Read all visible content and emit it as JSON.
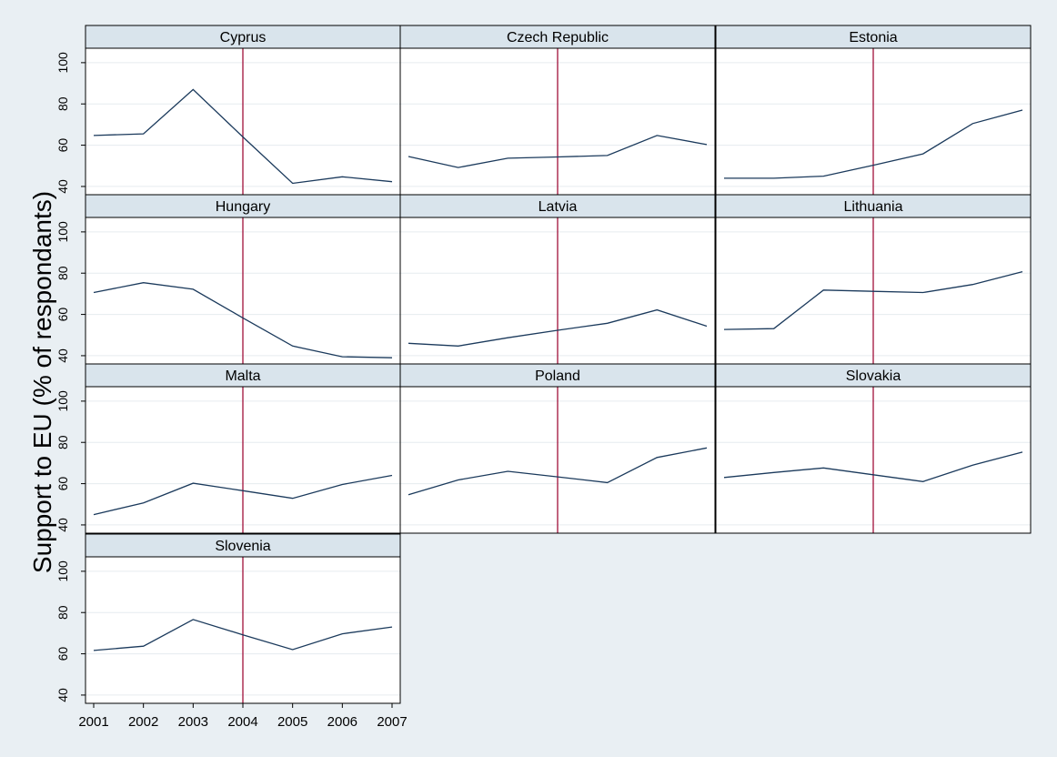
{
  "colors": {
    "page_background": "#e9eff3",
    "plot_background": "#ffffff",
    "strip_background": "#d9e4ec",
    "line": "#1b3a5c",
    "reference_line": "#a0103a",
    "gridline": "#e6ecef",
    "frame": "#000000"
  },
  "chart_data": {
    "type": "line",
    "layout": "small-multiples",
    "ylabel": "Support to EU (% of respondants)",
    "xlabel": "",
    "x": [
      2001,
      2002,
      2003,
      2004,
      2005,
      2006,
      2007
    ],
    "x_tick_labels": [
      "2001",
      "2002",
      "2003",
      "2004",
      "2005",
      "2006",
      "2007"
    ],
    "y_ticks": [
      40,
      60,
      80,
      100
    ],
    "y_tick_labels": [
      "40",
      "60",
      "80",
      "100"
    ],
    "ylim": [
      36,
      107
    ],
    "xlim": [
      2001,
      2007
    ],
    "reference_line_x": 2004,
    "grid": true,
    "panels": [
      {
        "title": "Cyprus",
        "values": [
          64.7,
          65.5,
          87,
          64,
          41.5,
          44.7,
          42.3
        ]
      },
      {
        "title": "Czech Republic",
        "values": [
          54.5,
          49.2,
          53.7,
          54.3,
          55,
          64.7,
          60.3
        ]
      },
      {
        "title": "Estonia",
        "values": [
          44,
          44,
          45,
          50.3,
          55.8,
          70.5,
          77
        ]
      },
      {
        "title": "Hungary",
        "values": [
          70.6,
          75.4,
          72.2,
          58.3,
          44.7,
          39.5,
          39
        ]
      },
      {
        "title": "Latvia",
        "values": [
          46,
          44.7,
          48.7,
          52.3,
          55.7,
          62.2,
          54.3
        ]
      },
      {
        "title": "Lithuania",
        "values": [
          52.7,
          53.1,
          71.8,
          71.2,
          70.6,
          74.5,
          80.7
        ]
      },
      {
        "title": "Malta",
        "values": [
          45,
          50.7,
          60.2,
          56.6,
          52.9,
          59.6,
          64
        ]
      },
      {
        "title": "Poland",
        "values": [
          54.6,
          61.8,
          66,
          63.3,
          60.5,
          72.7,
          77.3
        ]
      },
      {
        "title": "Slovakia",
        "values": [
          63,
          65.4,
          67.6,
          64.3,
          61,
          69,
          75.3
        ]
      },
      {
        "title": "Slovenia",
        "values": [
          61.6,
          63.7,
          76.6,
          69.2,
          62,
          69.7,
          73
        ]
      }
    ]
  }
}
